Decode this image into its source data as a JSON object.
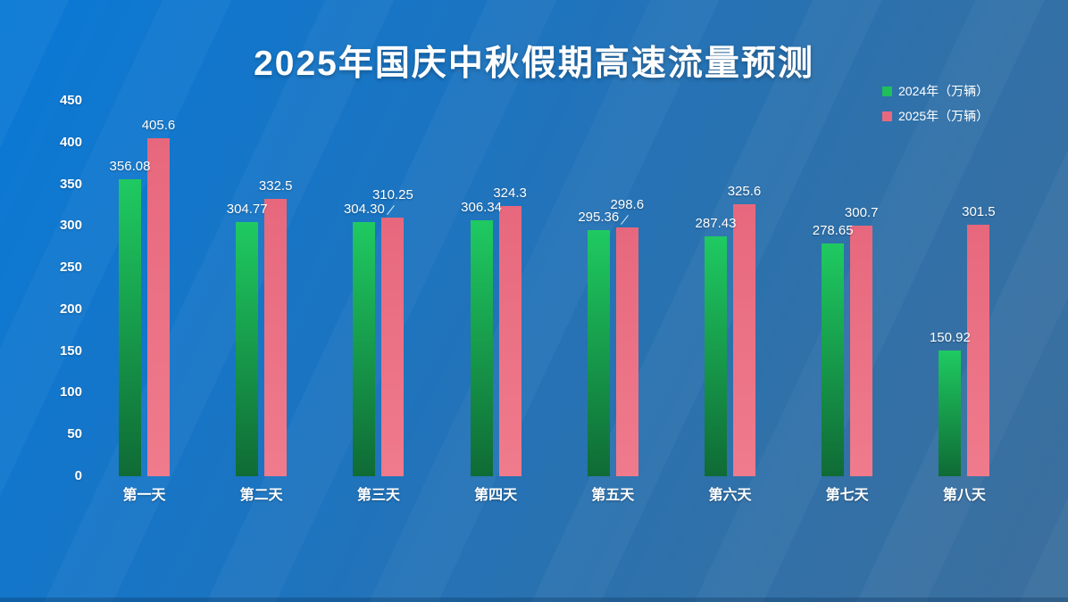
{
  "title": "2025年国庆中秋假期高速流量预测",
  "legend": {
    "items": [
      {
        "label": "2024年（万辆）",
        "color": "#1fbf5c"
      },
      {
        "label": "2025年（万辆）",
        "color": "#e8697e"
      }
    ]
  },
  "colors": {
    "background_start": "#0a79d6",
    "background_end": "#3c6f9d",
    "bar_2024_top": "#1fca61",
    "bar_2024_bottom": "#0f6b35",
    "bar_2025_top": "#e7687d",
    "bar_2025_bottom": "#ef7b8c",
    "text": "#ffffff"
  },
  "chart_data": {
    "type": "bar",
    "title": "2025年国庆中秋假期高速流量预测",
    "categories": [
      "第一天",
      "第二天",
      "第三天",
      "第四天",
      "第五天",
      "第六天",
      "第七天",
      "第八天"
    ],
    "series": [
      {
        "name": "2024年（万辆）",
        "values": [
          356.08,
          304.77,
          304.3,
          306.34,
          295.36,
          287.43,
          278.65,
          150.92
        ],
        "labels": [
          "356.08",
          "304.77",
          "304.30",
          "306.34",
          "295.36",
          "287.43",
          "278.65",
          "150.92"
        ]
      },
      {
        "name": "2025年（万辆）",
        "values": [
          405.6,
          332.5,
          310.25,
          324.3,
          298.6,
          325.6,
          300.7,
          301.5
        ],
        "labels": [
          "405.6",
          "332.5",
          "310.25",
          "324.3",
          "298.6",
          "325.6",
          "300.7",
          "301.5"
        ]
      }
    ],
    "ylim": [
      0,
      450
    ],
    "yticks": [
      0,
      50,
      100,
      150,
      200,
      250,
      300,
      350,
      400,
      450
    ],
    "grid": false,
    "axis_lines": false,
    "legend_position": "top-right",
    "leader_line_indices": [
      2,
      4
    ]
  }
}
